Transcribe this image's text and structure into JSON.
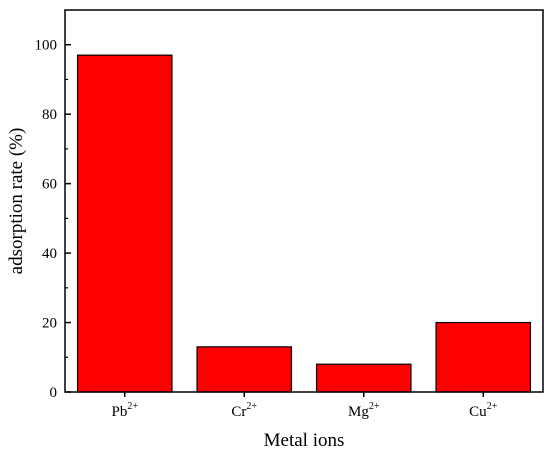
{
  "chart_data": {
    "type": "bar",
    "title": "",
    "xlabel": "Metal ions",
    "ylabel": "adsorption rate (%)",
    "categories": [
      {
        "base": "Pb",
        "sup": "2+"
      },
      {
        "base": "Cr",
        "sup": "2+"
      },
      {
        "base": "Mg",
        "sup": "2+"
      },
      {
        "base": "Cu",
        "sup": "2+"
      }
    ],
    "values": [
      97,
      13,
      8,
      20
    ],
    "ylim": [
      0,
      110
    ],
    "yticks": [
      0,
      20,
      40,
      60,
      80,
      100
    ],
    "bar_color": "#ff0000",
    "edge_color": "#000000",
    "grid": false,
    "legend": "none"
  }
}
